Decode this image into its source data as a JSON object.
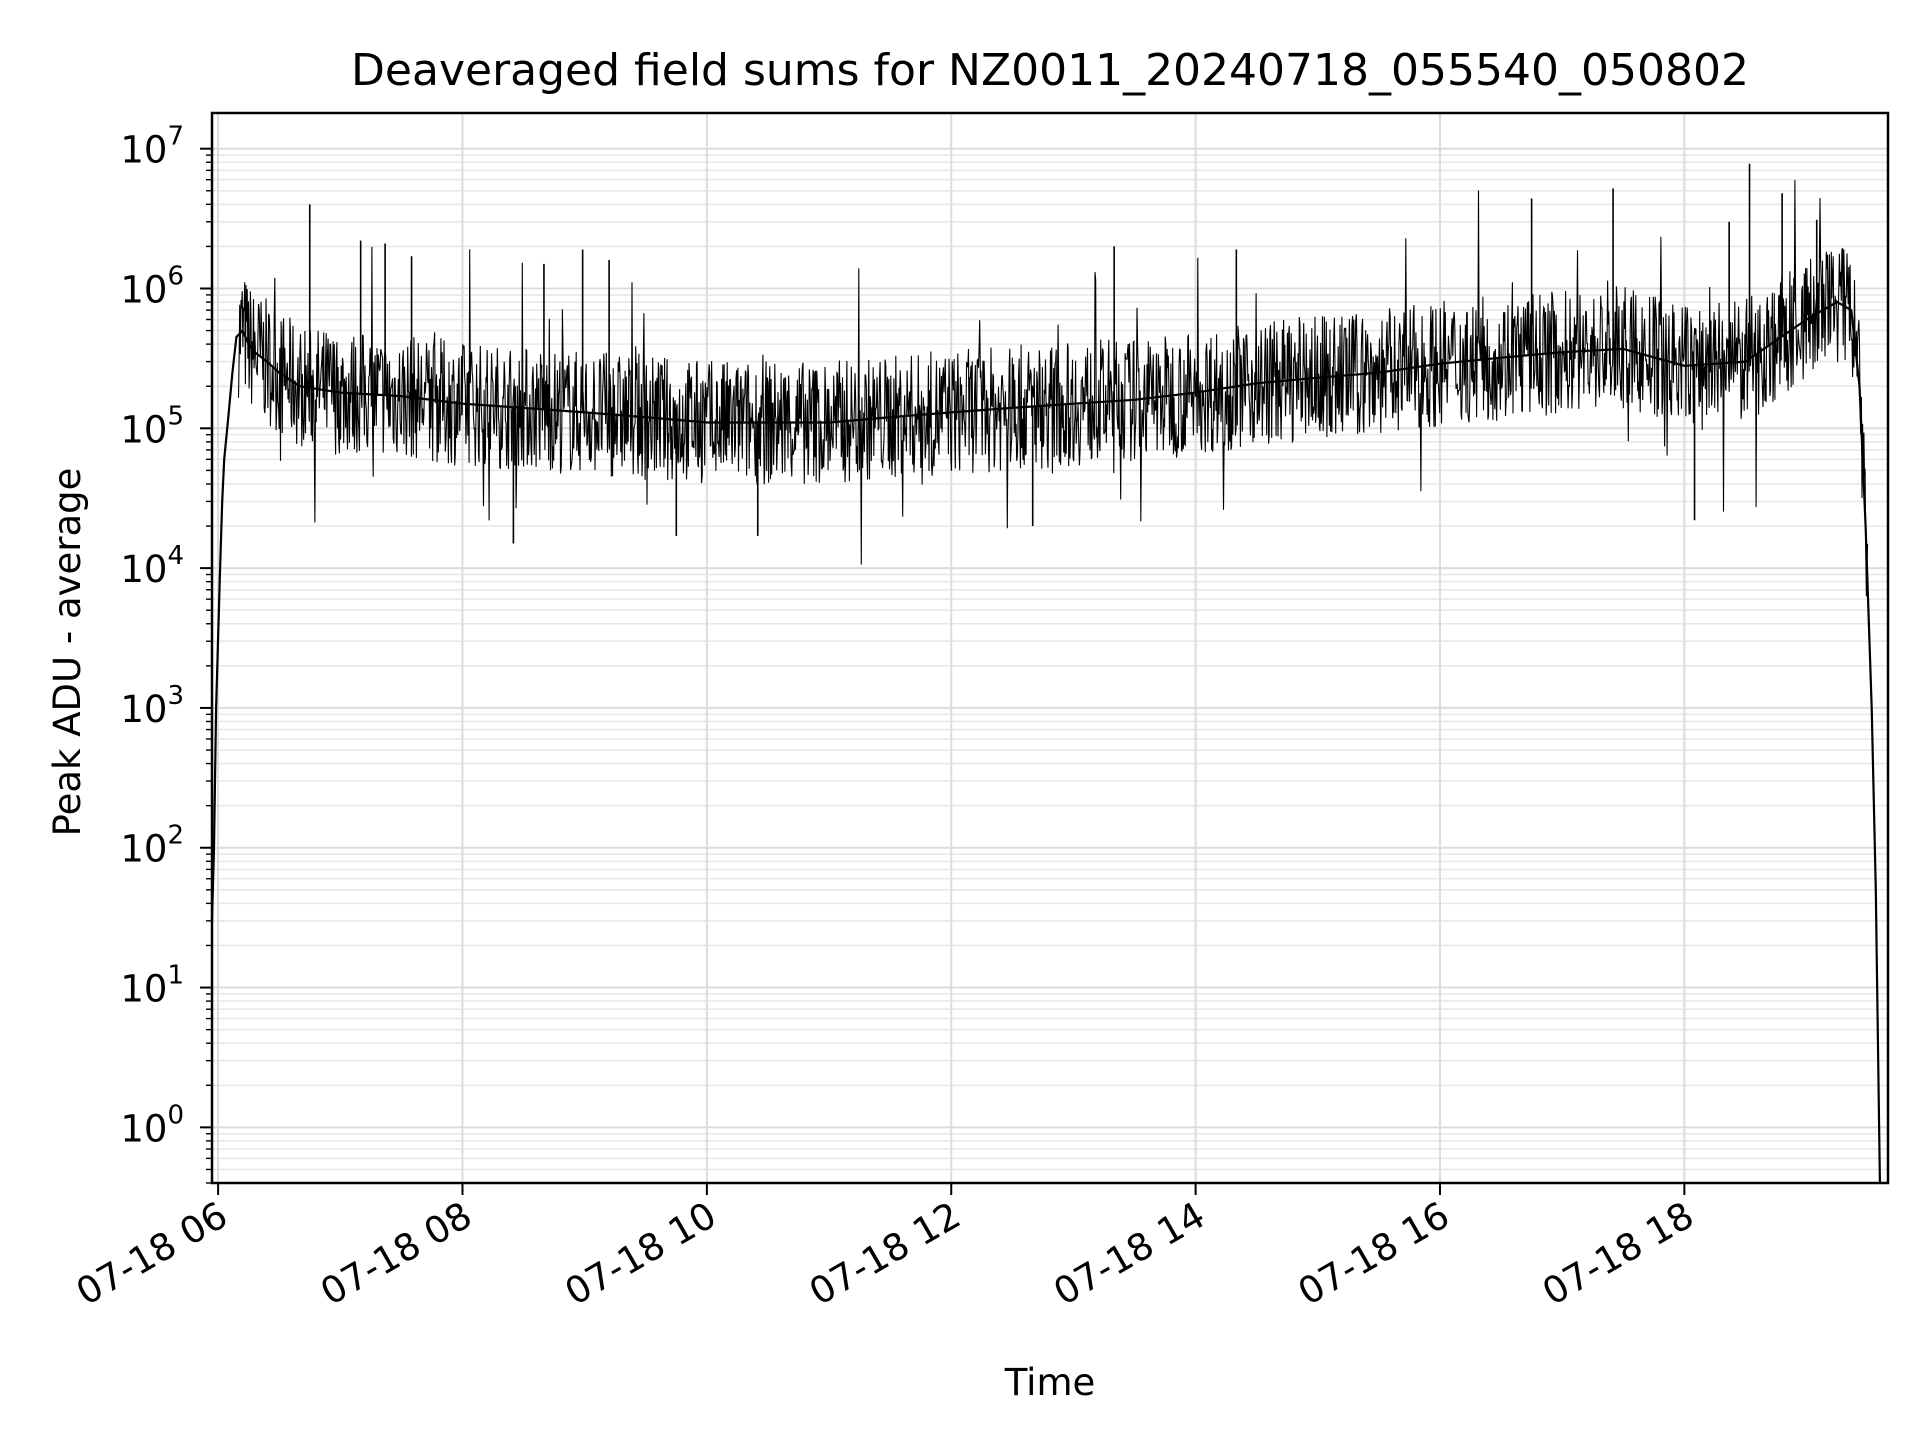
{
  "chart_data": {
    "type": "line",
    "title": "Deaveraged field sums for NZ0011_20240718_055540_050802",
    "xlabel": "Time",
    "ylabel": "Peak ADU - average",
    "yscale": "log",
    "ylim": [
      0.4,
      18000000
    ],
    "xlim": [
      "2024-07-18 05:57",
      "2024-07-18 19:40"
    ],
    "grid": true,
    "line_color": "#000000",
    "x_ticks": [
      {
        "value": "2024-07-18 06:00",
        "label": "07-18 06"
      },
      {
        "value": "2024-07-18 08:00",
        "label": "07-18 08"
      },
      {
        "value": "2024-07-18 10:00",
        "label": "07-18 10"
      },
      {
        "value": "2024-07-18 12:00",
        "label": "07-18 12"
      },
      {
        "value": "2024-07-18 14:00",
        "label": "07-18 14"
      },
      {
        "value": "2024-07-18 16:00",
        "label": "07-18 16"
      },
      {
        "value": "2024-07-18 18:00",
        "label": "07-18 18"
      }
    ],
    "y_ticks": [
      {
        "value": 1,
        "base": "10",
        "exp": "0"
      },
      {
        "value": 10,
        "base": "10",
        "exp": "1"
      },
      {
        "value": 100,
        "base": "10",
        "exp": "2"
      },
      {
        "value": 1000,
        "base": "10",
        "exp": "3"
      },
      {
        "value": 10000,
        "base": "10",
        "exp": "4"
      },
      {
        "value": 100000,
        "base": "10",
        "exp": "5"
      },
      {
        "value": 1000000,
        "base": "10",
        "exp": "6"
      },
      {
        "value": 10000000,
        "base": "10",
        "exp": "7"
      }
    ],
    "series": [
      {
        "x": [
          "2024-07-18 05:57",
          "2024-07-18 05:58",
          "2024-07-18 05:59",
          "2024-07-18 06:01",
          "2024-07-18 06:02",
          "2024-07-18 06:03",
          "2024-07-18 06:05",
          "2024-07-18 06:07",
          "2024-07-18 06:09",
          "2024-07-18 06:12",
          "2024-07-18 06:15",
          "2024-07-18 06:18",
          "2024-07-18 06:24",
          "2024-07-18 06:30",
          "2024-07-18 06:40",
          "2024-07-18 07:00",
          "2024-07-18 07:30",
          "2024-07-18 08:00",
          "2024-07-18 08:30",
          "2024-07-18 09:00",
          "2024-07-18 09:30",
          "2024-07-18 10:00",
          "2024-07-18 10:30",
          "2024-07-18 11:00",
          "2024-07-18 11:30",
          "2024-07-18 12:00",
          "2024-07-18 12:30",
          "2024-07-18 13:00",
          "2024-07-18 13:30",
          "2024-07-18 14:00",
          "2024-07-18 14:30",
          "2024-07-18 15:00",
          "2024-07-18 15:30",
          "2024-07-18 16:00",
          "2024-07-18 16:30",
          "2024-07-18 17:00",
          "2024-07-18 17:30",
          "2024-07-18 18:00",
          "2024-07-18 18:30",
          "2024-07-18 19:00",
          "2024-07-18 19:15",
          "2024-07-18 19:22",
          "2024-07-18 19:26",
          "2024-07-18 19:29",
          "2024-07-18 19:32",
          "2024-07-18 19:34",
          "2024-07-18 19:36"
        ],
        "y": [
          30,
          100,
          1000,
          10000,
          30000,
          60000,
          120000,
          250000,
          450000,
          500000,
          400000,
          350000,
          300000,
          250000,
          200000,
          180000,
          170000,
          150000,
          140000,
          130000,
          120000,
          110000,
          110000,
          110000,
          120000,
          130000,
          140000,
          150000,
          160000,
          180000,
          210000,
          230000,
          250000,
          290000,
          320000,
          350000,
          370000,
          280000,
          300000,
          600000,
          800000,
          700000,
          200000,
          20000,
          1000,
          50,
          0.3
        ]
      }
    ],
    "spikes": [
      {
        "x": "2024-07-18 06:45",
        "y": 4000000
      },
      {
        "x": "2024-07-18 07:10",
        "y": 2200000
      },
      {
        "x": "2024-07-18 07:22",
        "y": 2100000
      },
      {
        "x": "2024-07-18 07:35",
        "y": 1700000
      },
      {
        "x": "2024-07-18 08:40",
        "y": 1500000
      },
      {
        "x": "2024-07-18 08:59",
        "y": 1900000
      },
      {
        "x": "2024-07-18 09:12",
        "y": 1600000
      },
      {
        "x": "2024-07-18 13:20",
        "y": 2000000
      },
      {
        "x": "2024-07-18 14:20",
        "y": 1900000
      },
      {
        "x": "2024-07-18 16:45",
        "y": 4400000
      },
      {
        "x": "2024-07-18 17:25",
        "y": 5200000
      },
      {
        "x": "2024-07-18 18:22",
        "y": 3000000
      },
      {
        "x": "2024-07-18 18:32",
        "y": 7800000
      },
      {
        "x": "2024-07-18 18:48",
        "y": 4800000
      },
      {
        "x": "2024-07-18 19:05",
        "y": 3100000
      },
      {
        "x": "2024-07-18 08:25",
        "y": 15000
      },
      {
        "x": "2024-07-18 09:45",
        "y": 17000
      },
      {
        "x": "2024-07-18 10:25",
        "y": 17000
      },
      {
        "x": "2024-07-18 12:40",
        "y": 20000
      },
      {
        "x": "2024-07-18 18:05",
        "y": 22000
      }
    ]
  }
}
